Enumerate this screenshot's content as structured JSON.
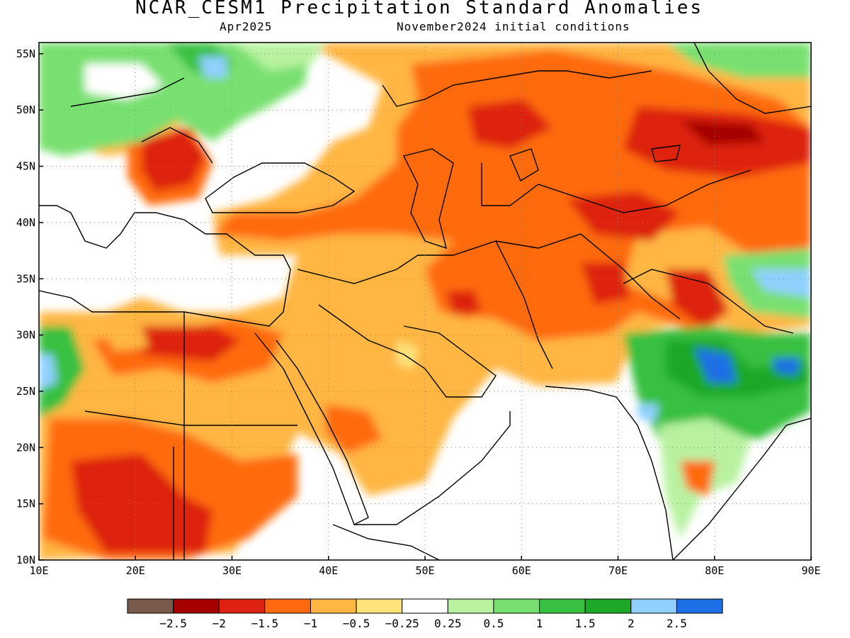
{
  "title": "NCAR_CESM1 Precipitation Standard Anomalies",
  "subtitle_left": "Apr2025",
  "subtitle_right": "November2024 initial conditions",
  "map": {
    "lon_range": [
      10,
      90
    ],
    "lat_range": [
      10,
      56
    ],
    "lon_ticks": [
      "10E",
      "20E",
      "30E",
      "40E",
      "50E",
      "60E",
      "70E",
      "80E",
      "90E"
    ],
    "lat_ticks": [
      "10N",
      "15N",
      "20N",
      "25N",
      "30N",
      "35N",
      "40N",
      "45N",
      "50N",
      "55N"
    ],
    "gridlines": "dotted"
  },
  "colorbar": {
    "labels": [
      "-2.5",
      "-2",
      "-1.5",
      "-1",
      "-0.5",
      "-0.25",
      "0.25",
      "0.5",
      "1",
      "1.5",
      "2",
      "2.5"
    ],
    "colors": [
      "#7a5a4a",
      "#a50000",
      "#dd2211",
      "#ff6a10",
      "#ffb642",
      "#ffe37a",
      "#ffffff",
      "#b8f2a0",
      "#78e070",
      "#38c040",
      "#1ea828",
      "#90d0ff",
      "#1e6ee6"
    ]
  },
  "colors": {
    "dry_strong": "#dd2211",
    "dry_moderate": "#ff6a10",
    "dry_weak": "#ffb642",
    "wet_weak": "#78e070",
    "wet_strong": "#1e6ee6"
  }
}
